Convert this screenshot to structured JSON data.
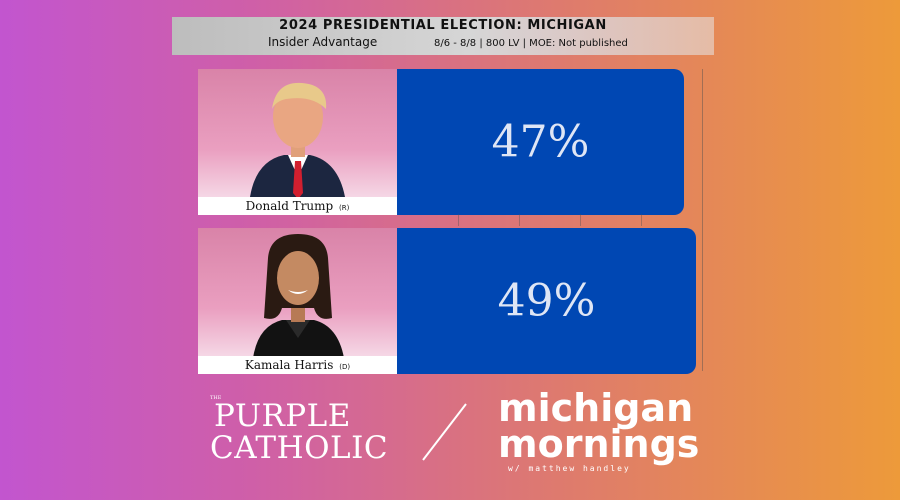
{
  "header": {
    "title": "2024 PRESIDENTIAL ELECTION: MICHIGAN",
    "pollster": "Insider Advantage",
    "meta": "8/6 - 8/8 | 800 LV | MOE: Not published"
  },
  "candidates": [
    {
      "name": "Donald Trump",
      "party": "(R)",
      "value_label": "47%"
    },
    {
      "name": "Kamala Harris",
      "party": "(D)",
      "value_label": "49%"
    }
  ],
  "chart_data": {
    "type": "bar",
    "orientation": "horizontal",
    "categories": [
      "Donald Trump (R)",
      "Kamala Harris (D)"
    ],
    "values": [
      47,
      49
    ],
    "title": "2024 PRESIDENTIAL ELECTION: MICHIGAN",
    "xlabel": "",
    "ylabel": "",
    "xlim": [
      0,
      50
    ],
    "bar_color": "#0047b3"
  },
  "branding": {
    "left_the": "THE",
    "left_line1": "PURPLE",
    "left_line2": "CATHOLIC",
    "right_line1": "michigan",
    "right_line2": "mornings",
    "right_line3": "w/ matthew handley"
  },
  "colors": {
    "bar": "#0047b3",
    "bg_left": "#c255cf",
    "bg_right": "#ed9a3a"
  }
}
